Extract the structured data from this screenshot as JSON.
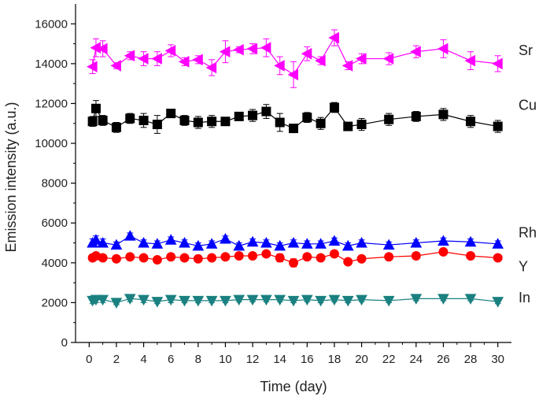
{
  "chart_data": {
    "type": "line",
    "title": "",
    "xlabel": "Time (day)",
    "ylabel": "Emission intensity (a.u.)",
    "xlim": [
      -1,
      31
    ],
    "ylim": [
      0,
      17000
    ],
    "x_ticks": [
      "0",
      "2",
      "4",
      "6",
      "8",
      "10",
      "12",
      "14",
      "16",
      "18",
      "20",
      "22",
      "24",
      "26",
      "28",
      "30"
    ],
    "y_ticks": [
      "0",
      "2000",
      "4000",
      "6000",
      "8000",
      "10000",
      "12000",
      "14000",
      "16000"
    ],
    "x": [
      0.25,
      0.5,
      1,
      2,
      3,
      4,
      5,
      6,
      7,
      8,
      9,
      10,
      11,
      12,
      13,
      14,
      15,
      16,
      17,
      18,
      19,
      20,
      22,
      24,
      26,
      28,
      30
    ],
    "series": [
      {
        "name": "Sr",
        "color": "#ff00ff",
        "marker": "triangle-left",
        "values": [
          13850,
          14800,
          14750,
          13900,
          14400,
          14250,
          14250,
          14650,
          14100,
          14200,
          13800,
          14600,
          14700,
          14750,
          14800,
          13900,
          13450,
          14500,
          14150,
          15300,
          13900,
          14250,
          14250,
          14600,
          14750,
          14150,
          14000
        ],
        "errors": [
          350,
          450,
          400,
          150,
          200,
          350,
          350,
          300,
          200,
          200,
          400,
          550,
          150,
          250,
          450,
          450,
          650,
          350,
          200,
          400,
          200,
          250,
          300,
          300,
          450,
          450,
          400
        ]
      },
      {
        "name": "Cu",
        "color": "#000000",
        "marker": "square",
        "values": [
          11100,
          11750,
          11150,
          10800,
          11250,
          11150,
          10950,
          11500,
          11150,
          11050,
          11100,
          11100,
          11350,
          11400,
          11600,
          11050,
          10750,
          11300,
          11000,
          11800,
          10850,
          10950,
          11200,
          11350,
          11450,
          11100,
          10850
        ],
        "errors": [
          250,
          400,
          250,
          250,
          250,
          350,
          450,
          150,
          250,
          300,
          300,
          150,
          150,
          300,
          350,
          450,
          150,
          250,
          300,
          250,
          100,
          300,
          300,
          250,
          300,
          300,
          300
        ]
      },
      {
        "name": "Rh",
        "color": "#0000ff",
        "marker": "triangle-up",
        "values": [
          5000,
          5150,
          5000,
          4900,
          5350,
          5000,
          4950,
          5150,
          5000,
          4850,
          4950,
          5200,
          4850,
          5050,
          5000,
          4850,
          5000,
          4950,
          4950,
          5100,
          4850,
          5000,
          4900,
          5000,
          5100,
          5050,
          4950
        ],
        "errors": [
          200,
          200,
          200,
          150,
          150,
          150,
          150,
          150,
          150,
          150,
          150,
          150,
          150,
          150,
          150,
          150,
          150,
          150,
          150,
          150,
          150,
          150,
          150,
          150,
          150,
          150,
          150
        ]
      },
      {
        "name": "Y",
        "color": "#ff0000",
        "marker": "circle",
        "values": [
          4250,
          4350,
          4250,
          4200,
          4300,
          4250,
          4150,
          4300,
          4250,
          4200,
          4250,
          4300,
          4350,
          4350,
          4450,
          4250,
          4000,
          4300,
          4250,
          4450,
          4050,
          4200,
          4300,
          4350,
          4550,
          4350,
          4250
        ],
        "errors": [
          150,
          150,
          150,
          150,
          150,
          150,
          150,
          150,
          150,
          150,
          150,
          150,
          150,
          150,
          150,
          200,
          200,
          150,
          150,
          150,
          150,
          150,
          150,
          150,
          150,
          150,
          150
        ]
      },
      {
        "name": "In",
        "color": "#1a8080",
        "marker": "triangle-down",
        "values": [
          2100,
          2150,
          2150,
          2000,
          2200,
          2150,
          2050,
          2150,
          2100,
          2100,
          2100,
          2100,
          2150,
          2150,
          2150,
          2150,
          2100,
          2150,
          2100,
          2150,
          2100,
          2150,
          2100,
          2200,
          2200,
          2200,
          2050
        ],
        "errors": [
          150,
          150,
          150,
          100,
          150,
          150,
          100,
          150,
          100,
          100,
          100,
          100,
          100,
          100,
          100,
          100,
          100,
          100,
          100,
          100,
          100,
          100,
          100,
          100,
          100,
          100,
          100
        ]
      }
    ]
  }
}
